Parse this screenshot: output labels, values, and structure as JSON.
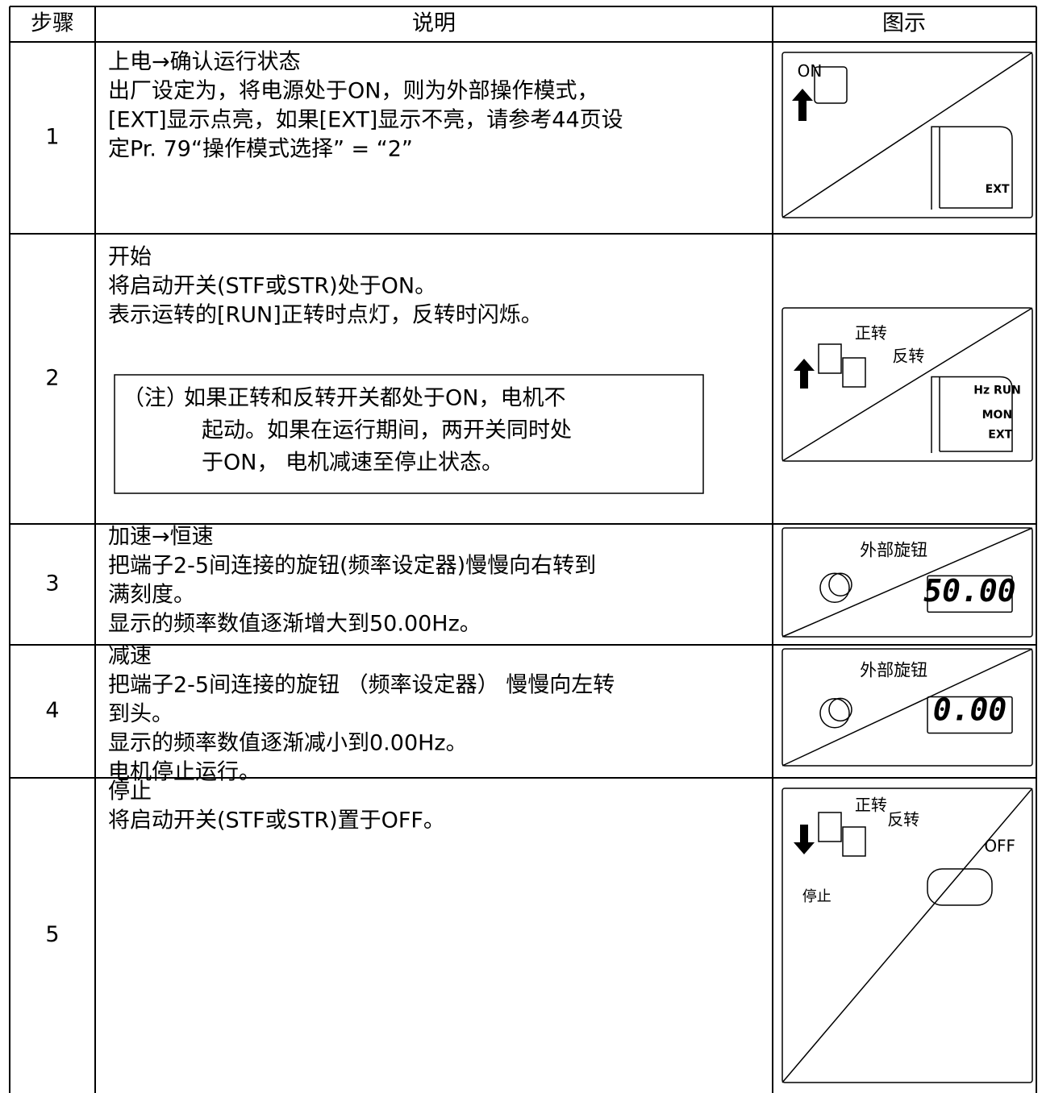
{
  "table": {
    "header": [
      "步骤",
      "说明",
      "图示"
    ],
    "rows": [
      {
        "step": "1",
        "lines": [
          "上电→确认运行状态",
          "出厂设定为，将电源处于ON，则为外部操作模式，",
          "[EXT]显示点亮，如果[EXT]显示不亮，请参考44页设",
          "定Pr. 79“操作模式选择” = “2”"
        ],
        "figure": [
          "ON",
          "EXT"
        ]
      },
      {
        "step": "2",
        "lines": [
          "开始",
          "将启动开关(STF或STR)处于ON。",
          "表示运转的[RUN]正转时点灯，反转时闪烁。"
        ],
        "note": {
          "label": "（注）",
          "lines": [
            "如果正转和反转开关都处于ON，电机不",
            "起动。如果在运行期间，两开关同时处",
            "于ON， 电机减速至停止状态。"
          ]
        },
        "figure": [
          "正转",
          "反转",
          "Hz RUN",
          "MON",
          "EXT"
        ]
      },
      {
        "step": "3",
        "lines": [
          "加速→恒速",
          "把端子2-5间连接的旋钮(频率设定器)慢慢向右转到",
          "满刻度。",
          "显示的频率数值逐渐增大到50.00Hz。"
        ],
        "figure": [
          "外部旋钮",
          "50.00"
        ]
      },
      {
        "step": "4",
        "lines": [
          "减速",
          "把端子2-5间连接的旋钮 （频率设定器） 慢慢向左转",
          "到头。",
          "显示的频率数值逐渐减小到0.00Hz。",
          "电机停止运行。"
        ],
        "figure": [
          "外部旋钮",
          "0.00"
        ]
      },
      {
        "step": "5",
        "lines": [
          "停止",
          "将启动开关(STF或STR)置于OFF。"
        ],
        "figure": [
          "正转",
          "反转",
          "OFF",
          "停止"
        ]
      }
    ]
  }
}
